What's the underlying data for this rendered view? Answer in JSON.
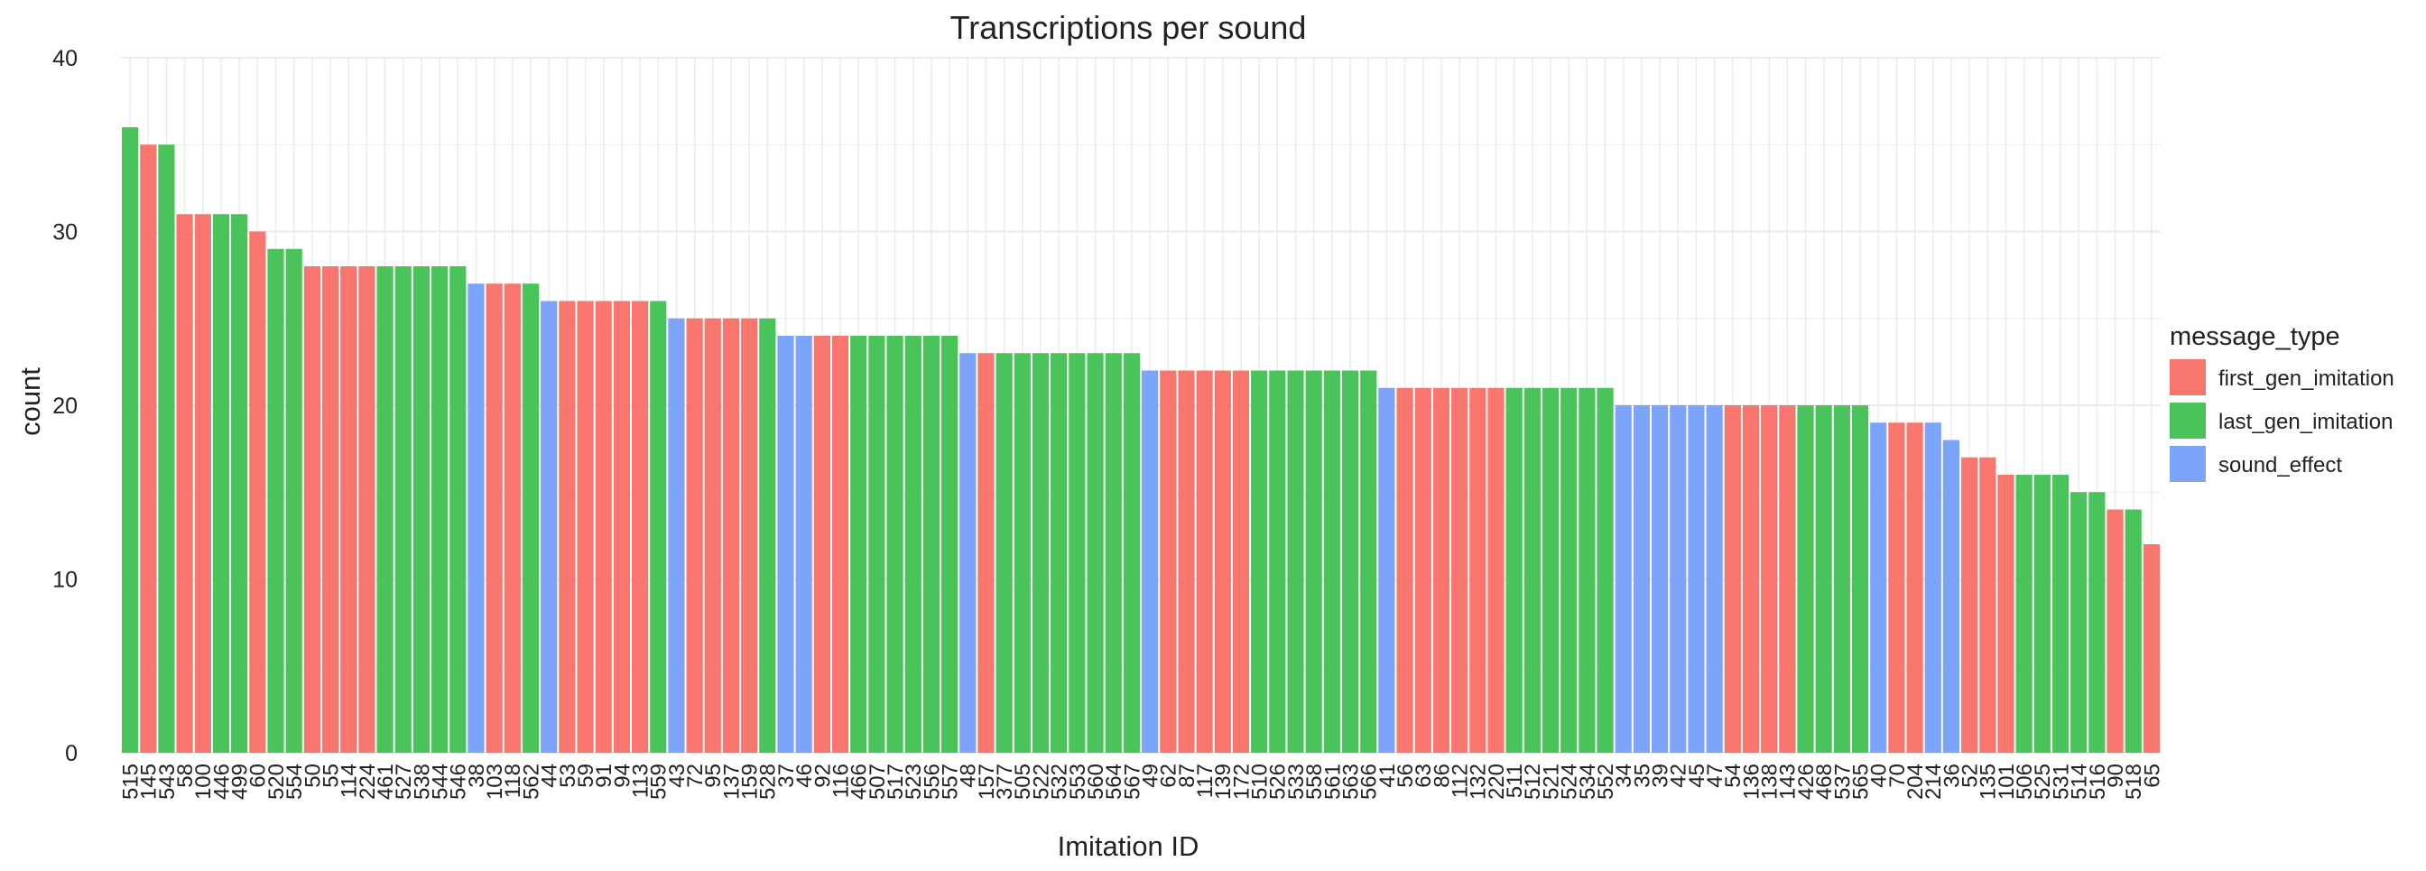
{
  "chart_data": {
    "type": "bar",
    "title": "Transcriptions per sound",
    "xlabel": "Imitation ID",
    "ylabel": "count",
    "ylim": [
      0,
      40
    ],
    "yticks": [
      0,
      10,
      20,
      30,
      40
    ],
    "grid": true,
    "legend": {
      "title": "message_type",
      "position": "right",
      "entries": [
        {
          "name": "first_gen_imitation",
          "color": "#F8766D"
        },
        {
          "name": "last_gen_imitation",
          "color": "#4AC35A"
        },
        {
          "name": "sound_effect",
          "color": "#7CA4FA"
        }
      ]
    },
    "categories": [
      "515",
      "145",
      "543",
      "58",
      "100",
      "446",
      "499",
      "60",
      "520",
      "554",
      "50",
      "55",
      "114",
      "224",
      "461",
      "527",
      "538",
      "544",
      "546",
      "38",
      "103",
      "118",
      "562",
      "44",
      "53",
      "59",
      "91",
      "94",
      "113",
      "559",
      "43",
      "72",
      "95",
      "137",
      "159",
      "528",
      "37",
      "46",
      "92",
      "116",
      "466",
      "507",
      "517",
      "523",
      "556",
      "557",
      "48",
      "157",
      "377",
      "505",
      "522",
      "532",
      "553",
      "560",
      "564",
      "567",
      "49",
      "62",
      "87",
      "117",
      "139",
      "172",
      "510",
      "526",
      "533",
      "558",
      "561",
      "563",
      "566",
      "41",
      "56",
      "63",
      "86",
      "112",
      "132",
      "220",
      "511",
      "512",
      "521",
      "524",
      "534",
      "552",
      "34",
      "35",
      "39",
      "42",
      "45",
      "47",
      "54",
      "136",
      "138",
      "143",
      "426",
      "468",
      "537",
      "565",
      "40",
      "70",
      "204",
      "214",
      "36",
      "52",
      "135",
      "101",
      "506",
      "525",
      "531",
      "514",
      "516",
      "90",
      "518",
      "65"
    ],
    "values": [
      36,
      35,
      35,
      31,
      31,
      31,
      31,
      30,
      29,
      29,
      28,
      28,
      28,
      28,
      28,
      28,
      28,
      28,
      28,
      27,
      27,
      27,
      27,
      26,
      26,
      26,
      26,
      26,
      26,
      26,
      25,
      25,
      25,
      25,
      25,
      25,
      24,
      24,
      24,
      24,
      24,
      24,
      24,
      24,
      24,
      24,
      23,
      23,
      23,
      23,
      23,
      23,
      23,
      23,
      23,
      23,
      22,
      22,
      22,
      22,
      22,
      22,
      22,
      22,
      22,
      22,
      22,
      22,
      22,
      21,
      21,
      21,
      21,
      21,
      21,
      21,
      21,
      21,
      21,
      21,
      21,
      21,
      20,
      20,
      20,
      20,
      20,
      20,
      20,
      20,
      20,
      20,
      20,
      20,
      20,
      20,
      19,
      19,
      19,
      19,
      18,
      17,
      17,
      16,
      16,
      16,
      16,
      15,
      15,
      14,
      14,
      12
    ],
    "types": [
      "last_gen_imitation",
      "first_gen_imitation",
      "last_gen_imitation",
      "first_gen_imitation",
      "first_gen_imitation",
      "last_gen_imitation",
      "last_gen_imitation",
      "first_gen_imitation",
      "last_gen_imitation",
      "last_gen_imitation",
      "first_gen_imitation",
      "first_gen_imitation",
      "first_gen_imitation",
      "first_gen_imitation",
      "last_gen_imitation",
      "last_gen_imitation",
      "last_gen_imitation",
      "last_gen_imitation",
      "last_gen_imitation",
      "sound_effect",
      "first_gen_imitation",
      "first_gen_imitation",
      "last_gen_imitation",
      "sound_effect",
      "first_gen_imitation",
      "first_gen_imitation",
      "first_gen_imitation",
      "first_gen_imitation",
      "first_gen_imitation",
      "last_gen_imitation",
      "sound_effect",
      "first_gen_imitation",
      "first_gen_imitation",
      "first_gen_imitation",
      "first_gen_imitation",
      "last_gen_imitation",
      "sound_effect",
      "sound_effect",
      "first_gen_imitation",
      "first_gen_imitation",
      "last_gen_imitation",
      "last_gen_imitation",
      "last_gen_imitation",
      "last_gen_imitation",
      "last_gen_imitation",
      "last_gen_imitation",
      "sound_effect",
      "first_gen_imitation",
      "last_gen_imitation",
      "last_gen_imitation",
      "last_gen_imitation",
      "last_gen_imitation",
      "last_gen_imitation",
      "last_gen_imitation",
      "last_gen_imitation",
      "last_gen_imitation",
      "sound_effect",
      "first_gen_imitation",
      "first_gen_imitation",
      "first_gen_imitation",
      "first_gen_imitation",
      "first_gen_imitation",
      "last_gen_imitation",
      "last_gen_imitation",
      "last_gen_imitation",
      "last_gen_imitation",
      "last_gen_imitation",
      "last_gen_imitation",
      "last_gen_imitation",
      "sound_effect",
      "first_gen_imitation",
      "first_gen_imitation",
      "first_gen_imitation",
      "first_gen_imitation",
      "first_gen_imitation",
      "first_gen_imitation",
      "last_gen_imitation",
      "last_gen_imitation",
      "last_gen_imitation",
      "last_gen_imitation",
      "last_gen_imitation",
      "last_gen_imitation",
      "sound_effect",
      "sound_effect",
      "sound_effect",
      "sound_effect",
      "sound_effect",
      "sound_effect",
      "first_gen_imitation",
      "first_gen_imitation",
      "first_gen_imitation",
      "first_gen_imitation",
      "last_gen_imitation",
      "last_gen_imitation",
      "last_gen_imitation",
      "last_gen_imitation",
      "sound_effect",
      "first_gen_imitation",
      "first_gen_imitation",
      "sound_effect",
      "sound_effect",
      "first_gen_imitation",
      "first_gen_imitation",
      "first_gen_imitation",
      "last_gen_imitation",
      "last_gen_imitation",
      "last_gen_imitation",
      "last_gen_imitation",
      "last_gen_imitation",
      "first_gen_imitation",
      "last_gen_imitation",
      "first_gen_imitation"
    ]
  }
}
